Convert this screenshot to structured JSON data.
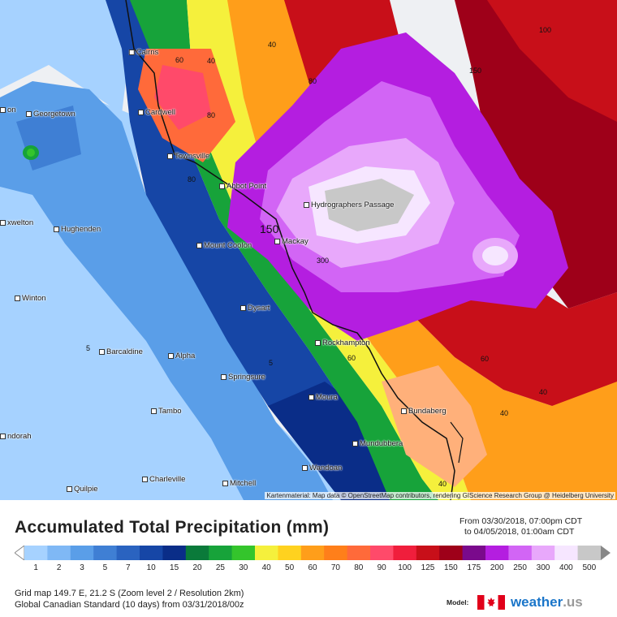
{
  "map": {
    "places": [
      {
        "name": "Cairns",
        "dot": "below"
      },
      {
        "name": "Georgetown",
        "dot": "below"
      },
      {
        "name": "Cardwell",
        "dot": "below"
      },
      {
        "name": "Townsville",
        "dot": "below"
      },
      {
        "name": "Abbot Point",
        "dot": "below"
      },
      {
        "name": "Hydrographers Passage",
        "dot": "below"
      },
      {
        "name": "Hughenden",
        "dot": "below"
      },
      {
        "name": "Mount Coolon",
        "dot": "above"
      },
      {
        "name": "Mackay",
        "dot": "above"
      },
      {
        "name": "Winton",
        "dot": "below"
      },
      {
        "name": "Dysart",
        "dot": "below"
      },
      {
        "name": "Barcaldine",
        "dot": "below"
      },
      {
        "name": "Alpha",
        "dot": "below"
      },
      {
        "name": "Rockhampton",
        "dot": "below"
      },
      {
        "name": "Springsure",
        "dot": "below"
      },
      {
        "name": "Moura",
        "dot": "below"
      },
      {
        "name": "Tambo",
        "dot": "left"
      },
      {
        "name": "Bundaberg",
        "dot": "below"
      },
      {
        "name": "Mundubbera",
        "dot": "below"
      },
      {
        "name": "Wandoan",
        "dot": "below"
      },
      {
        "name": "Charleville",
        "dot": "below"
      },
      {
        "name": "Quilpie",
        "dot": "below"
      },
      {
        "name": "Mitchell",
        "dot": "below"
      },
      {
        "name": "xwelton",
        "dot": "below"
      },
      {
        "name": "on",
        "dot": "below"
      },
      {
        "name": "ndorah",
        "dot": "below"
      }
    ],
    "contour_labels": [
      "40",
      "60",
      "40",
      "80",
      "80",
      "80",
      "100",
      "150",
      "150",
      "300",
      "5",
      "5",
      "60",
      "60",
      "40",
      "40",
      "40"
    ],
    "attribution": "Kartenmaterial: Map data © OpenStreetMap contributors, rendering GIScience Research Group @ Heidelberg University"
  },
  "panel": {
    "title": "Accumulated Total Precipitation (mm)",
    "range_from": "From 03/30/2018, 07:00pm CDT",
    "range_to": "to 04/05/2018, 01:00am CDT",
    "grid_line": "Grid map 149.7 E, 21.2 S (Zoom level 2 / Resolution 2km)",
    "model_line": "Global Canadian Standard (10 days) from 03/31/2018/00z",
    "model_label": "Model:",
    "logo_main": "weather",
    "logo_tld": ".us"
  },
  "legend": {
    "labels": [
      "1",
      "2",
      "3",
      "5",
      "7",
      "10",
      "15",
      "20",
      "25",
      "30",
      "40",
      "50",
      "60",
      "70",
      "80",
      "90",
      "100",
      "125",
      "150",
      "175",
      "200",
      "250",
      "300",
      "400",
      "500"
    ],
    "colors": [
      "#a6d2ff",
      "#7fb8f5",
      "#5a9ee8",
      "#3f7fd4",
      "#2a63c0",
      "#1646a6",
      "#0a2d88",
      "#0a7a3a",
      "#17a33a",
      "#34c52c",
      "#f5f03c",
      "#ffd21f",
      "#ff9e1a",
      "#ff7f1a",
      "#ff6a3a",
      "#ff4a6a",
      "#f01e3c",
      "#c80f19",
      "#9e0019",
      "#7a0a8c",
      "#b41ee0",
      "#d265f5",
      "#e8a8fb",
      "#f6e6ff",
      "#c8c8c8"
    ]
  }
}
